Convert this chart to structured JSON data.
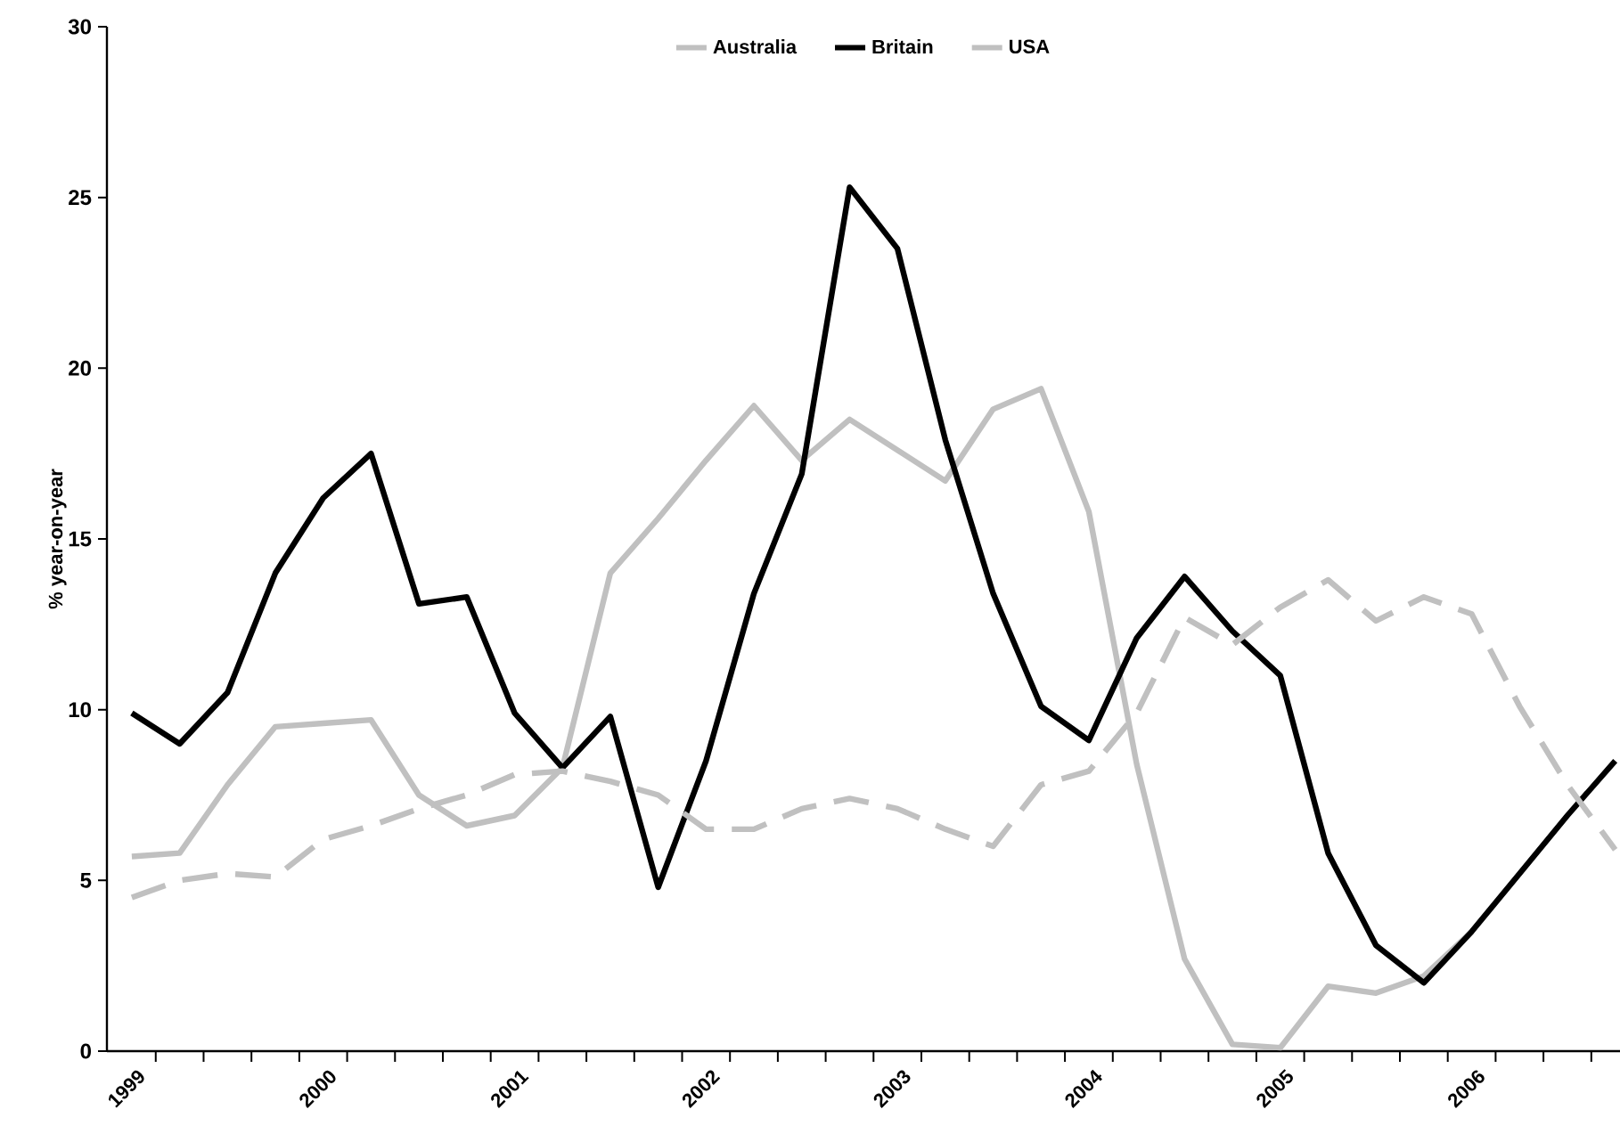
{
  "chart_data": {
    "type": "line",
    "ylabel": "% year-on-year",
    "categories": [
      "1999",
      null,
      null,
      null,
      "2000",
      null,
      null,
      null,
      "2001",
      null,
      null,
      null,
      "2002",
      null,
      null,
      null,
      "2003",
      null,
      null,
      null,
      "2004",
      null,
      null,
      null,
      "2005",
      null,
      null,
      null,
      "2006",
      null,
      null,
      null
    ],
    "series": [
      {
        "name": "Australia",
        "color": "#c0c0c0",
        "line_style": "solid",
        "values": [
          5.7,
          5.8,
          7.8,
          9.5,
          9.6,
          9.7,
          7.5,
          6.6,
          6.9,
          8.3,
          14.0,
          15.6,
          17.3,
          18.9,
          17.3,
          18.5,
          17.6,
          16.7,
          18.8,
          19.4,
          15.8,
          8.4,
          2.7,
          0.2,
          0.1,
          1.9,
          1.7,
          2.2,
          3.5,
          null,
          null,
          null
        ]
      },
      {
        "name": "Britain",
        "color": "#000000",
        "line_style": "solid",
        "values": [
          9.9,
          9.0,
          10.5,
          14.0,
          16.2,
          17.5,
          13.1,
          13.3,
          9.9,
          8.3,
          9.8,
          4.8,
          8.5,
          13.4,
          16.9,
          25.3,
          23.5,
          17.9,
          13.4,
          10.1,
          9.1,
          12.1,
          13.9,
          12.3,
          11.0,
          5.8,
          3.1,
          2.0,
          3.5,
          5.2,
          6.9,
          8.5
        ]
      },
      {
        "name": "USA",
        "color": "#c0c0c0",
        "line_style": "dashed",
        "values": [
          4.5,
          5.0,
          5.2,
          5.1,
          6.2,
          6.6,
          7.1,
          7.5,
          8.1,
          8.2,
          7.9,
          7.5,
          6.5,
          6.5,
          7.1,
          7.4,
          7.1,
          6.5,
          6.0,
          7.8,
          8.2,
          9.9,
          12.7,
          11.9,
          13.0,
          13.8,
          12.6,
          13.3,
          12.8,
          10.1,
          7.8,
          5.9
        ]
      }
    ],
    "ylim": [
      0,
      30
    ],
    "yticks": [
      0,
      5,
      10,
      15,
      20,
      25,
      30
    ],
    "legend": "top",
    "marker": "none"
  }
}
